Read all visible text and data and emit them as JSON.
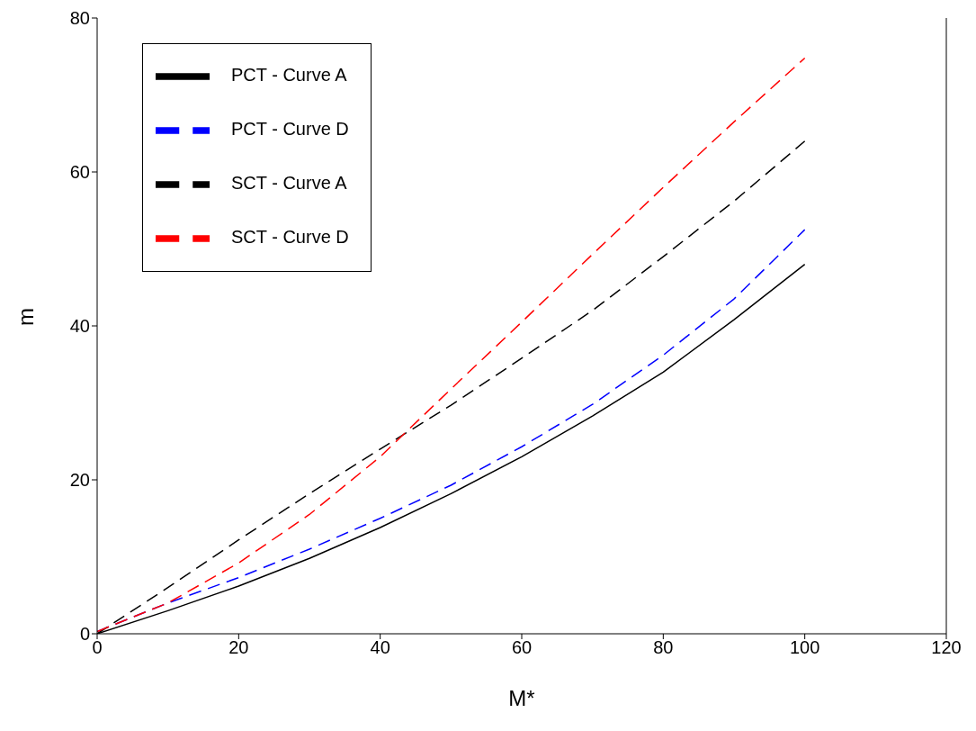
{
  "chart_data": {
    "type": "line",
    "xlabel": "M*",
    "ylabel": "m",
    "x": [
      0,
      10,
      20,
      30,
      40,
      50,
      60,
      70,
      80,
      90,
      100
    ],
    "xlim": [
      0,
      120
    ],
    "xticks": [
      0,
      20,
      40,
      60,
      80,
      100,
      120
    ],
    "ylim": [
      0,
      80
    ],
    "yticks": [
      0,
      20,
      40,
      60,
      80
    ],
    "grid": false,
    "legend": "top left",
    "marker": "none",
    "series": [
      {
        "name": "PCT - Curve A",
        "color": "#000000",
        "line_style": "solid",
        "values": [
          0,
          3,
          6.2,
          9.8,
          13.8,
          18.2,
          23,
          28.3,
          34,
          40.8,
          48
        ]
      },
      {
        "name": "PCT - Curve D",
        "color": "#0000ff",
        "line_style": "dashed",
        "values": [
          0.3,
          4,
          7.3,
          11,
          15,
          19.3,
          24.3,
          29.8,
          36.2,
          43.5,
          52.5
        ]
      },
      {
        "name": "SCT - Curve A",
        "color": "#000000",
        "line_style": "dashed",
        "values": [
          0,
          6,
          12.2,
          18.2,
          24,
          29.7,
          35.8,
          42,
          49,
          56.2,
          64
        ]
      },
      {
        "name": "SCT - Curve D",
        "color": "#ff0000",
        "line_style": "dashed",
        "values": [
          0.3,
          4,
          9.2,
          15.5,
          23,
          31.8,
          40.5,
          49.3,
          58,
          66.5,
          74.8
        ]
      }
    ]
  }
}
